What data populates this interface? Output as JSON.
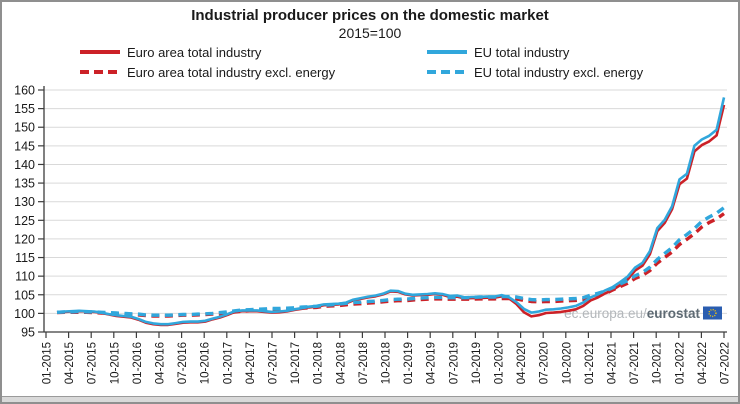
{
  "title": "Industrial producer prices on the domestic market",
  "subtitle": "2015=100",
  "watermark": {
    "prefix": "ec.europa.eu/",
    "bold": "eurostat"
  },
  "colors": {
    "euro_area": "#cc2127",
    "eu": "#31a7dc",
    "grid": "#d9d9d9",
    "axis": "#3c3c3c",
    "tick_label": "#1a1a1a",
    "watermark_light": "#b3b7bb",
    "watermark_dark": "#5e6a73",
    "flag_blue": "#2a5db0",
    "flag_stars": "#ffcc00"
  },
  "legend": [
    {
      "label": "Euro area total industry",
      "series": "euro_area",
      "style": "solid"
    },
    {
      "label": "Euro area total industry excl. energy",
      "series": "euro_area",
      "style": "dashed"
    },
    {
      "label": "EU total industry",
      "series": "eu",
      "style": "solid"
    },
    {
      "label": "EU total industry excl. energy",
      "series": "eu",
      "style": "dashed"
    }
  ],
  "chart_data": {
    "type": "line",
    "title": "Industrial producer prices on the domestic market",
    "subtitle": "2015=100",
    "x_unit": "month",
    "x_start": "01-2015",
    "x_end": "07-2022",
    "x_tick_every_months": 3,
    "x_tick_labels": [
      "01-2015",
      "04-2015",
      "07-2015",
      "10-2015",
      "01-2016",
      "04-2016",
      "07-2016",
      "10-2016",
      "01-2017",
      "04-2017",
      "07-2017",
      "10-2017",
      "01-2018",
      "04-2018",
      "07-2018",
      "10-2018",
      "01-2019",
      "04-2019",
      "07-2019",
      "10-2019",
      "01-2020",
      "04-2020",
      "07-2020",
      "10-2020",
      "01-2021",
      "04-2021",
      "07-2021",
      "10-2021",
      "01-2022",
      "04-2022",
      "07-2022"
    ],
    "ylim": [
      95,
      160
    ],
    "y_ticks": [
      95,
      100,
      105,
      110,
      115,
      120,
      125,
      130,
      135,
      140,
      145,
      150,
      155,
      160
    ],
    "grid": true,
    "legend_position": "top",
    "series": [
      {
        "name": "Euro area total industry",
        "color_key": "euro_area",
        "dash": "solid",
        "values": [
          100.3,
          100.4,
          100.5,
          100.6,
          100.5,
          100.4,
          100.1,
          99.7,
          99.3,
          99.1,
          98.9,
          98.3,
          97.5,
          97.1,
          96.9,
          96.9,
          97.2,
          97.5,
          97.6,
          97.6,
          97.8,
          98.4,
          98.9,
          99.6,
          100.4,
          100.6,
          100.6,
          100.6,
          100.4,
          100.2,
          100.3,
          100.5,
          100.9,
          101.2,
          101.6,
          101.8,
          102.2,
          102.3,
          102.4,
          102.7,
          103.5,
          103.9,
          104.3,
          104.6,
          105.1,
          105.9,
          105.8,
          105.1,
          104.8,
          104.9,
          105.0,
          105.2,
          105.0,
          104.4,
          104.5,
          104.0,
          104.1,
          104.1,
          104.2,
          104.2,
          104.6,
          104.0,
          102.5,
          100.3,
          99.2,
          99.5,
          100.1,
          100.2,
          100.4,
          100.7,
          101.1,
          102.0,
          103.5,
          104.3,
          105.4,
          106.3,
          107.6,
          109.1,
          111.5,
          112.8,
          115.9,
          122.1,
          124.3,
          128.0,
          134.7,
          136.2,
          143.5,
          145.2,
          146.2,
          147.8,
          156.0
        ]
      },
      {
        "name": "Euro area total industry excl. energy",
        "color_key": "euro_area",
        "dash": "dashed",
        "values": [
          100.2,
          100.3,
          100.3,
          100.3,
          100.3,
          100.2,
          100.1,
          100.0,
          99.9,
          99.8,
          99.7,
          99.6,
          99.4,
          99.3,
          99.3,
          99.3,
          99.4,
          99.5,
          99.5,
          99.6,
          99.7,
          99.8,
          99.9,
          100.1,
          100.4,
          100.6,
          100.7,
          100.8,
          100.9,
          101.0,
          101.0,
          101.1,
          101.2,
          101.4,
          101.5,
          101.6,
          101.9,
          102.0,
          102.1,
          102.3,
          102.5,
          102.6,
          102.8,
          102.9,
          103.1,
          103.3,
          103.4,
          103.4,
          103.6,
          103.7,
          103.8,
          103.9,
          103.9,
          103.8,
          103.8,
          103.8,
          103.8,
          103.9,
          103.9,
          103.9,
          104.0,
          104.0,
          103.9,
          103.5,
          103.2,
          103.1,
          103.2,
          103.2,
          103.3,
          103.4,
          103.5,
          103.7,
          104.3,
          104.8,
          105.3,
          106.3,
          107.2,
          108.1,
          109.4,
          110.2,
          111.5,
          113.5,
          115.0,
          116.5,
          118.5,
          119.9,
          121.4,
          123.2,
          124.4,
          125.4,
          126.8
        ]
      },
      {
        "name": "EU total industry",
        "color_key": "eu",
        "dash": "solid",
        "values": [
          100.4,
          100.5,
          100.6,
          100.7,
          100.6,
          100.5,
          100.2,
          99.8,
          99.5,
          99.3,
          99.1,
          98.5,
          97.7,
          97.3,
          97.1,
          97.1,
          97.4,
          97.7,
          97.8,
          97.8,
          98.0,
          98.6,
          99.1,
          99.8,
          100.6,
          100.8,
          100.8,
          100.8,
          100.6,
          100.4,
          100.5,
          100.7,
          101.1,
          101.4,
          101.8,
          102.0,
          102.4,
          102.5,
          102.6,
          102.9,
          103.7,
          104.1,
          104.5,
          104.8,
          105.3,
          106.1,
          106.0,
          105.3,
          105.0,
          105.1,
          105.2,
          105.4,
          105.2,
          104.7,
          104.8,
          104.3,
          104.4,
          104.4,
          104.5,
          104.5,
          104.9,
          104.3,
          103.0,
          101.2,
          100.2,
          100.5,
          101.0,
          101.1,
          101.3,
          101.6,
          102.0,
          102.9,
          104.3,
          105.1,
          106.2,
          107.1,
          108.4,
          109.9,
          112.3,
          113.6,
          116.7,
          122.9,
          125.1,
          128.8,
          136.0,
          137.5,
          145.0,
          146.7,
          147.7,
          149.3,
          158.0
        ]
      },
      {
        "name": "EU total industry excl. energy",
        "color_key": "eu",
        "dash": "dashed",
        "values": [
          100.3,
          100.4,
          100.4,
          100.5,
          100.4,
          100.4,
          100.3,
          100.2,
          100.1,
          100.0,
          99.9,
          99.8,
          99.6,
          99.5,
          99.5,
          99.5,
          99.6,
          99.7,
          99.7,
          99.8,
          99.9,
          100.0,
          100.2,
          100.4,
          100.7,
          100.9,
          101.0,
          101.1,
          101.2,
          101.3,
          101.3,
          101.4,
          101.5,
          101.7,
          101.8,
          101.9,
          102.2,
          102.3,
          102.5,
          102.7,
          102.9,
          103.0,
          103.2,
          103.3,
          103.5,
          103.7,
          103.8,
          103.8,
          104.0,
          104.1,
          104.2,
          104.3,
          104.3,
          104.2,
          104.2,
          104.2,
          104.3,
          104.4,
          104.4,
          104.4,
          104.5,
          104.5,
          104.4,
          104.0,
          103.7,
          103.6,
          103.7,
          103.7,
          103.8,
          103.9,
          104.0,
          104.2,
          104.9,
          105.4,
          106.0,
          106.9,
          107.9,
          108.8,
          110.1,
          111.0,
          112.4,
          114.5,
          116.1,
          117.7,
          119.8,
          121.2,
          122.8,
          124.7,
          125.9,
          126.9,
          128.4
        ]
      }
    ]
  }
}
